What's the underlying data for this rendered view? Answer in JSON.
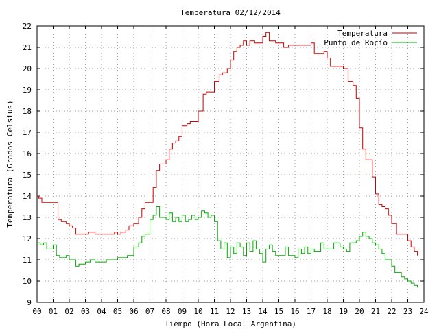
{
  "chart_data": {
    "type": "line",
    "title": "Temperatura 02/12/2014",
    "xlabel": "Tiempo (Hora Local Argentina)",
    "ylabel": "Temperatura (Grados Celsius)",
    "xlim": [
      0,
      24
    ],
    "ylim": [
      9,
      22
    ],
    "x_ticks": [
      {
        "value": 0,
        "label": "00"
      },
      {
        "value": 1,
        "label": "01"
      },
      {
        "value": 2,
        "label": "02"
      },
      {
        "value": 3,
        "label": "03"
      },
      {
        "value": 4,
        "label": "04"
      },
      {
        "value": 5,
        "label": "05"
      },
      {
        "value": 6,
        "label": "06"
      },
      {
        "value": 7,
        "label": "07"
      },
      {
        "value": 8,
        "label": "08"
      },
      {
        "value": 9,
        "label": "09"
      },
      {
        "value": 10,
        "label": "10"
      },
      {
        "value": 11,
        "label": "11"
      },
      {
        "value": 12,
        "label": "12"
      },
      {
        "value": 13,
        "label": "13"
      },
      {
        "value": 14,
        "label": "14"
      },
      {
        "value": 15,
        "label": "15"
      },
      {
        "value": 16,
        "label": "16"
      },
      {
        "value": 17,
        "label": "17"
      },
      {
        "value": 18,
        "label": "18"
      },
      {
        "value": 19,
        "label": "19"
      },
      {
        "value": 20,
        "label": "20"
      },
      {
        "value": 21,
        "label": "21"
      },
      {
        "value": 22,
        "label": "22"
      },
      {
        "value": 23,
        "label": "23"
      },
      {
        "value": 24,
        "label": "24"
      }
    ],
    "y_ticks": [
      {
        "value": 9,
        "label": "9"
      },
      {
        "value": 10,
        "label": "10"
      },
      {
        "value": 11,
        "label": "11"
      },
      {
        "value": 12,
        "label": "12"
      },
      {
        "value": 13,
        "label": "13"
      },
      {
        "value": 14,
        "label": "14"
      },
      {
        "value": 15,
        "label": "15"
      },
      {
        "value": 16,
        "label": "16"
      },
      {
        "value": 17,
        "label": "17"
      },
      {
        "value": 18,
        "label": "18"
      },
      {
        "value": 19,
        "label": "19"
      },
      {
        "value": 20,
        "label": "20"
      },
      {
        "value": 21,
        "label": "21"
      },
      {
        "value": 22,
        "label": "22"
      }
    ],
    "grid": true,
    "legend_position": "top-right",
    "series": [
      {
        "name": "Temperatura",
        "color": "#cc0000",
        "x": [
          0,
          0.1,
          0.3,
          0.6,
          1.0,
          1.3,
          1.5,
          1.8,
          2.0,
          2.2,
          2.4,
          2.8,
          3.2,
          3.6,
          4.0,
          4.4,
          4.8,
          5.0,
          5.2,
          5.5,
          5.7,
          6.0,
          6.3,
          6.5,
          6.7,
          7.0,
          7.2,
          7.4,
          7.6,
          7.8,
          8.0,
          8.2,
          8.4,
          8.6,
          8.8,
          9.0,
          9.3,
          9.5,
          9.7,
          10.0,
          10.3,
          10.5,
          10.7,
          11.0,
          11.3,
          11.5,
          11.8,
          12.0,
          12.2,
          12.4,
          12.6,
          12.8,
          13.0,
          13.2,
          13.5,
          13.8,
          14.0,
          14.2,
          14.4,
          14.6,
          14.8,
          15.0,
          15.3,
          15.6,
          16.0,
          16.3,
          16.6,
          17.0,
          17.2,
          17.5,
          17.8,
          18.0,
          18.2,
          18.5,
          18.8,
          19.0,
          19.3,
          19.6,
          19.8,
          20.0,
          20.2,
          20.4,
          20.6,
          20.8,
          21.0,
          21.2,
          21.4,
          21.6,
          21.8,
          22.0,
          22.3,
          22.6,
          22.8,
          23.0,
          23.2,
          23.4,
          23.6
        ],
        "y": [
          14.0,
          13.9,
          13.7,
          13.7,
          13.7,
          12.9,
          12.8,
          12.7,
          12.6,
          12.5,
          12.2,
          12.2,
          12.3,
          12.2,
          12.2,
          12.2,
          12.3,
          12.2,
          12.3,
          12.4,
          12.6,
          12.7,
          13.0,
          13.4,
          13.7,
          13.7,
          14.4,
          15.2,
          15.5,
          15.5,
          15.7,
          16.2,
          16.5,
          16.6,
          16.8,
          17.3,
          17.4,
          17.5,
          17.5,
          18.0,
          18.8,
          18.9,
          18.9,
          19.4,
          19.7,
          19.8,
          20.0,
          20.4,
          20.8,
          21.0,
          21.1,
          21.3,
          21.1,
          21.3,
          21.2,
          21.2,
          21.5,
          21.7,
          21.3,
          21.3,
          21.2,
          21.2,
          21.0,
          21.1,
          21.1,
          21.1,
          21.1,
          21.2,
          20.7,
          20.7,
          20.8,
          20.5,
          20.1,
          20.1,
          20.1,
          20.0,
          19.4,
          19.2,
          18.6,
          17.2,
          16.2,
          15.7,
          15.7,
          14.9,
          14.1,
          13.6,
          13.5,
          13.4,
          13.1,
          12.7,
          12.2,
          12.2,
          12.2,
          11.9,
          11.6,
          11.4,
          11.2
        ]
      },
      {
        "name": "Punto de Rocío",
        "color": "#00aa00",
        "x": [
          0,
          0.2,
          0.4,
          0.6,
          0.8,
          1.0,
          1.2,
          1.4,
          1.6,
          1.8,
          2.0,
          2.2,
          2.4,
          2.6,
          2.8,
          3.0,
          3.3,
          3.6,
          4.0,
          4.3,
          4.6,
          5.0,
          5.3,
          5.6,
          6.0,
          6.3,
          6.5,
          6.7,
          7.0,
          7.2,
          7.4,
          7.6,
          7.8,
          8.0,
          8.2,
          8.4,
          8.6,
          8.8,
          9.0,
          9.2,
          9.4,
          9.6,
          9.8,
          10.0,
          10.2,
          10.4,
          10.6,
          10.8,
          11.0,
          11.2,
          11.4,
          11.6,
          11.8,
          12.0,
          12.2,
          12.4,
          12.6,
          12.8,
          13.0,
          13.2,
          13.4,
          13.6,
          13.8,
          14.0,
          14.2,
          14.4,
          14.6,
          14.8,
          15.0,
          15.2,
          15.4,
          15.6,
          15.8,
          16.0,
          16.2,
          16.4,
          16.6,
          16.8,
          17.0,
          17.2,
          17.4,
          17.6,
          17.8,
          18.0,
          18.2,
          18.4,
          18.6,
          18.8,
          19.0,
          19.2,
          19.4,
          19.6,
          19.8,
          20.0,
          20.2,
          20.4,
          20.6,
          20.8,
          21.0,
          21.2,
          21.4,
          21.6,
          21.8,
          22.0,
          22.2,
          22.4,
          22.6,
          22.8,
          23.0,
          23.2,
          23.4,
          23.6
        ],
        "y": [
          11.8,
          11.7,
          11.8,
          11.5,
          11.5,
          11.7,
          11.2,
          11.1,
          11.1,
          11.2,
          11.0,
          11.0,
          10.7,
          10.8,
          10.8,
          10.9,
          11.0,
          10.9,
          10.9,
          11.0,
          11.0,
          11.1,
          11.1,
          11.2,
          11.6,
          11.8,
          12.1,
          12.2,
          12.9,
          13.1,
          13.5,
          13.0,
          13.0,
          12.9,
          13.2,
          12.8,
          13.0,
          12.8,
          13.1,
          12.8,
          12.9,
          13.1,
          12.9,
          13.0,
          13.3,
          13.2,
          13.0,
          13.1,
          12.8,
          11.9,
          11.5,
          11.8,
          11.1,
          11.6,
          11.3,
          11.8,
          11.6,
          11.2,
          11.8,
          11.4,
          11.9,
          11.5,
          11.3,
          10.9,
          11.5,
          11.7,
          11.4,
          11.2,
          11.2,
          11.2,
          11.6,
          11.2,
          11.2,
          11.1,
          11.5,
          11.3,
          11.6,
          11.3,
          11.5,
          11.4,
          11.4,
          11.8,
          11.5,
          11.5,
          11.5,
          11.8,
          11.8,
          11.6,
          11.5,
          11.4,
          11.8,
          11.8,
          11.9,
          12.1,
          12.3,
          12.1,
          12.0,
          11.8,
          11.7,
          11.5,
          11.3,
          11.0,
          11.0,
          10.7,
          10.4,
          10.4,
          10.2,
          10.1,
          10.0,
          9.9,
          9.8,
          9.7
        ]
      }
    ]
  }
}
